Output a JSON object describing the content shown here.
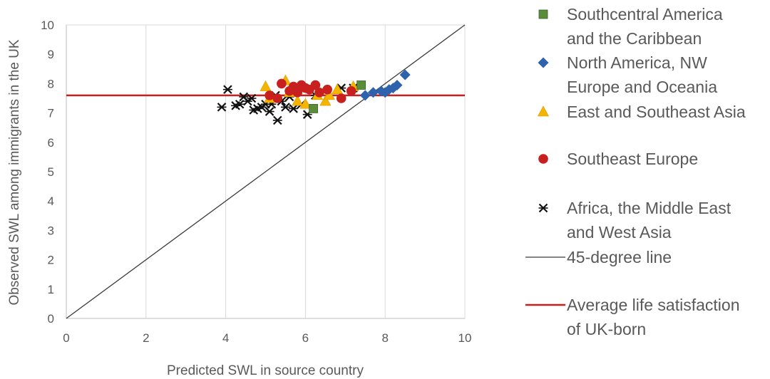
{
  "chart_data": {
    "type": "scatter",
    "title": "",
    "xlabel": "Predicted SWL in source country",
    "ylabel": "Observed SWL among immigrants in the UK",
    "xlim": [
      0,
      10
    ],
    "ylim": [
      0,
      10
    ],
    "x_ticks": [
      "0",
      "2",
      "4",
      "6",
      "8",
      "10"
    ],
    "y_ticks": [
      "0",
      "1",
      "2",
      "3",
      "4",
      "5",
      "6",
      "7",
      "8",
      "9",
      "10"
    ],
    "grid": "vertical",
    "legend_position": "right",
    "series": [
      {
        "name": "Southcentral America and the Caribbean",
        "legend_lines": [
          "Southcentral America",
          "and the Caribbean"
        ],
        "marker": "square",
        "color": "#5b8c3a",
        "points": [
          [
            6.2,
            7.15
          ],
          [
            7.4,
            7.95
          ]
        ]
      },
      {
        "name": "North America, NW Europe and Oceania",
        "legend_lines": [
          "North America, NW",
          "Europe and Oceania"
        ],
        "marker": "diamond",
        "color": "#2e62ad",
        "points": [
          [
            7.5,
            7.6
          ],
          [
            7.7,
            7.7
          ],
          [
            7.9,
            7.75
          ],
          [
            8.0,
            7.7
          ],
          [
            8.1,
            7.8
          ],
          [
            8.2,
            7.85
          ],
          [
            8.3,
            7.95
          ],
          [
            8.5,
            8.3
          ]
        ]
      },
      {
        "name": "East and Southeast Asia",
        "legend_lines": [
          "East and Southeast Asia"
        ],
        "marker": "triangle",
        "color": "#f5b400",
        "points": [
          [
            5.0,
            7.9
          ],
          [
            5.1,
            7.5
          ],
          [
            5.5,
            8.1
          ],
          [
            5.6,
            7.7
          ],
          [
            5.8,
            7.4
          ],
          [
            6.0,
            7.3
          ],
          [
            6.3,
            7.6
          ],
          [
            6.5,
            7.4
          ],
          [
            6.6,
            7.6
          ],
          [
            6.8,
            7.8
          ],
          [
            7.2,
            7.9
          ]
        ]
      },
      {
        "name": "Southeast Europe",
        "legend_lines": [
          "Southeast Europe"
        ],
        "marker": "circle",
        "color": "#c8201e",
        "points": [
          [
            5.1,
            7.6
          ],
          [
            5.3,
            7.5
          ],
          [
            5.4,
            8.0
          ],
          [
            5.6,
            7.75
          ],
          [
            5.7,
            7.9
          ],
          [
            5.8,
            7.7
          ],
          [
            5.9,
            7.95
          ],
          [
            6.0,
            7.85
          ],
          [
            6.1,
            7.8
          ],
          [
            6.25,
            7.95
          ],
          [
            6.35,
            7.7
          ],
          [
            6.55,
            7.8
          ],
          [
            6.9,
            7.5
          ],
          [
            7.15,
            7.75
          ]
        ]
      },
      {
        "name": "Africa, the Middle East and West Asia",
        "legend_lines": [
          "Africa, the Middle East",
          "and West Asia"
        ],
        "marker": "star",
        "color": "#111111",
        "points": [
          [
            3.9,
            7.2
          ],
          [
            4.05,
            7.8
          ],
          [
            4.25,
            7.25
          ],
          [
            4.35,
            7.3
          ],
          [
            4.45,
            7.55
          ],
          [
            4.55,
            7.4
          ],
          [
            4.65,
            7.5
          ],
          [
            4.7,
            7.1
          ],
          [
            4.8,
            7.15
          ],
          [
            4.9,
            7.2
          ],
          [
            5.0,
            7.3
          ],
          [
            5.1,
            7.05
          ],
          [
            5.15,
            7.3
          ],
          [
            5.25,
            7.6
          ],
          [
            5.3,
            6.75
          ],
          [
            5.4,
            7.4
          ],
          [
            5.5,
            7.2
          ],
          [
            5.6,
            7.55
          ],
          [
            5.7,
            7.15
          ],
          [
            5.9,
            7.3
          ],
          [
            6.05,
            6.95
          ],
          [
            6.25,
            7.6
          ],
          [
            6.9,
            7.85
          ],
          [
            7.2,
            7.85
          ]
        ]
      }
    ],
    "lines": [
      {
        "name": "45-degree line",
        "legend_lines": [
          "45-degree line"
        ],
        "color": "#3b3b3b",
        "points": [
          [
            0,
            0
          ],
          [
            10,
            10
          ]
        ]
      },
      {
        "name": "Average life satisfaction of UK-born",
        "legend_lines": [
          "Average life satisfaction",
          "of UK-born"
        ],
        "color": "#c8201e",
        "y": 7.6
      }
    ]
  }
}
